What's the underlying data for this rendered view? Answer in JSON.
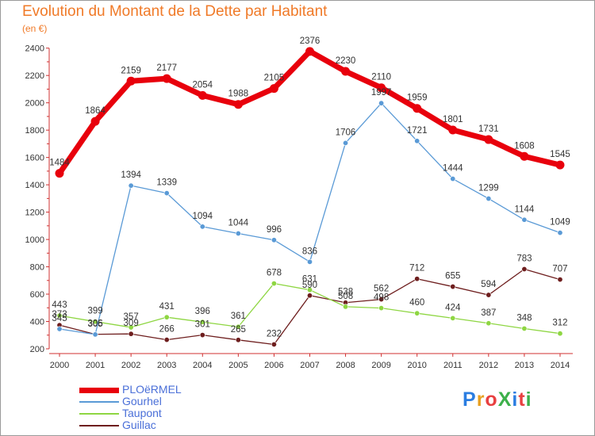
{
  "title": "Evolution du Montant de la Dette par Habitant",
  "subtitle": "(en €)",
  "logo": {
    "text": "ProXiti",
    "colors": [
      "#2a7de1",
      "#e8a020",
      "#e84040",
      "#3cb04a",
      "#2a7de1",
      "#e84040",
      "#3cb04a"
    ]
  },
  "chart_data": {
    "type": "line",
    "x": [
      "2000",
      "2001",
      "2002",
      "2003",
      "2004",
      "2005",
      "2006",
      "2007",
      "2008",
      "2009",
      "2010",
      "2011",
      "2012",
      "2013",
      "2014"
    ],
    "ylim": [
      200,
      2400
    ],
    "yticks": [
      "200",
      "400",
      "600",
      "800",
      "1000",
      "1200",
      "1400",
      "1600",
      "1800",
      "2000",
      "2200",
      "2400"
    ],
    "grid": false,
    "legend_position": "bottom-left",
    "series": [
      {
        "name": "PLOëRMEL",
        "color": "#e8000c",
        "values": [
          1484,
          1864,
          2159,
          2177,
          2054,
          1988,
          2105,
          2376,
          2230,
          2110,
          1959,
          1801,
          1731,
          1608,
          1545
        ],
        "labels": [
          "1484",
          "1864",
          "2159",
          "2177",
          "2054",
          "1988",
          "2105",
          "2376",
          "2230",
          "2110",
          "1959",
          "1801",
          "1731",
          "1608",
          "1545"
        ]
      },
      {
        "name": "Gourhel",
        "color": "#5a9ad6",
        "values": [
          345,
          305,
          1394,
          1339,
          1094,
          1044,
          996,
          836,
          1706,
          1997,
          1721,
          1444,
          1299,
          1144,
          1049
        ],
        "labels": [
          "345",
          "305",
          "1394",
          "1339",
          "1094",
          "1044",
          "996",
          "836",
          "1706",
          "1997",
          "1721",
          "1444",
          "1299",
          "1144",
          "1049"
        ]
      },
      {
        "name": "Taupont",
        "color": "#8ed642",
        "values": [
          443,
          399,
          357,
          431,
          396,
          361,
          678,
          631,
          508,
          498,
          460,
          424,
          387,
          348,
          312
        ],
        "labels": [
          "443",
          "399",
          "357",
          "431",
          "396",
          "361",
          "678",
          "631",
          "508",
          "498",
          "460",
          "424",
          "387",
          "348",
          "312"
        ]
      },
      {
        "name": "Guillac",
        "color": "#6e1e1e",
        "values": [
          373,
          306,
          309,
          266,
          301,
          265,
          232,
          590,
          538,
          562,
          712,
          655,
          594,
          783,
          707
        ],
        "labels": [
          "373",
          "306",
          "309",
          "266",
          "301",
          "265",
          "232",
          "590",
          "538",
          "562",
          "712",
          "655",
          "594",
          "783",
          "707"
        ]
      }
    ]
  }
}
